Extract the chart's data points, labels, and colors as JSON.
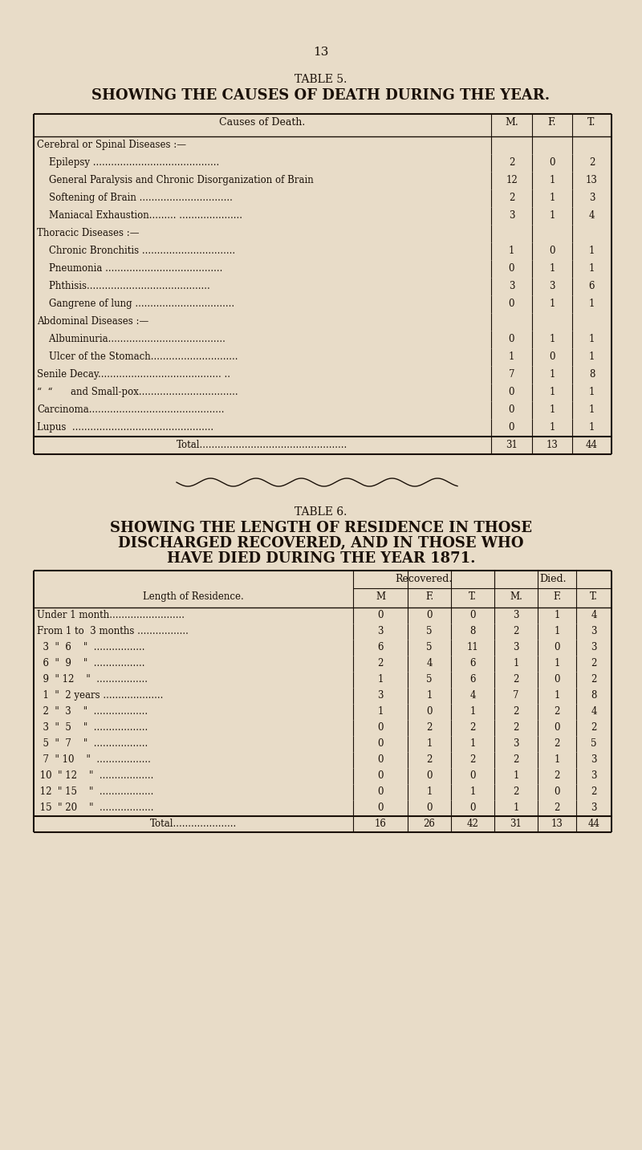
{
  "page_number": "13",
  "bg_color": "#e8dcc8",
  "text_color": "#1a1008",
  "table5_title1": "TABLE 5.",
  "table5_title2": "SHOWING THE CAUSES OF DEATH DURING THE YEAR.",
  "table5_rows": [
    [
      "Cerebral or Spinal Diseases :—",
      "",
      "",
      ""
    ],
    [
      "    Epilepsy ..........................................",
      "2",
      "0",
      "2"
    ],
    [
      "    General Paralysis and Chronic Disorganization of Brain",
      "12",
      "1",
      "13"
    ],
    [
      "    Softening of Brain ...............................",
      "2",
      "1",
      "3"
    ],
    [
      "    Maniacal Exhaustion......... .....................",
      "3",
      "1",
      "4"
    ],
    [
      "Thoracic Diseases :—",
      "",
      "",
      ""
    ],
    [
      "    Chronic Bronchitis ...............................",
      "1",
      "0",
      "1"
    ],
    [
      "    Pneumonia .......................................",
      "0",
      "1",
      "1"
    ],
    [
      "    Phthisis.........................................",
      "3",
      "3",
      "6"
    ],
    [
      "    Gangrene of lung .................................",
      "0",
      "1",
      "1"
    ],
    [
      "Abdominal Diseases :—",
      "",
      "",
      ""
    ],
    [
      "    Albuminuria.......................................",
      "0",
      "1",
      "1"
    ],
    [
      "    Ulcer of the Stomach.............................",
      "1",
      "0",
      "1"
    ],
    [
      "Senile Decay......................................... ..",
      "7",
      "1",
      "8"
    ],
    [
      "“  “      and Small-pox.................................",
      "0",
      "1",
      "1"
    ],
    [
      "Carcinoma.............................................",
      "0",
      "1",
      "1"
    ],
    [
      "Lupus  ...............................................",
      "0",
      "1",
      "1"
    ],
    [
      "Total.................................................",
      "31",
      "13",
      "44"
    ]
  ],
  "table6_title1": "TABLE 6.",
  "table6_title2": "SHOWING THE LENGTH OF RESIDENCE IN THOSE",
  "table6_title3": "DISCHARGED RECOVERED, AND IN THOSE WHO",
  "table6_title4": "HAVE DIED DURING THE YEAR 1871.",
  "table6_rows": [
    [
      "Under 1 month.........................",
      "0",
      "0",
      "0",
      "3",
      "1",
      "4"
    ],
    [
      "From 1 to  3 months .................",
      "3",
      "5",
      "8",
      "2",
      "1",
      "3"
    ],
    [
      "  3  \"  6    \"  .................",
      "6",
      "5",
      "11",
      "3",
      "0",
      "3"
    ],
    [
      "  6  \"  9    \"  .................",
      "2",
      "4",
      "6",
      "1",
      "1",
      "2"
    ],
    [
      "  9  \" 12    \"  .................",
      "1",
      "5",
      "6",
      "2",
      "0",
      "2"
    ],
    [
      "  1  \"  2 years ....................",
      "3",
      "1",
      "4",
      "7",
      "1",
      "8"
    ],
    [
      "  2  \"  3    \"  ..................",
      "1",
      "0",
      "1",
      "2",
      "2",
      "4"
    ],
    [
      "  3  \"  5    \"  ..................",
      "0",
      "2",
      "2",
      "2",
      "0",
      "2"
    ],
    [
      "  5  \"  7    \"  ..................",
      "0",
      "1",
      "1",
      "3",
      "2",
      "5"
    ],
    [
      "  7  \" 10    \"  ..................",
      "0",
      "2",
      "2",
      "2",
      "1",
      "3"
    ],
    [
      " 10  \" 12    \"  ..................",
      "0",
      "0",
      "0",
      "1",
      "2",
      "3"
    ],
    [
      " 12  \" 15    \"  ..................",
      "0",
      "1",
      "1",
      "2",
      "0",
      "2"
    ],
    [
      " 15  \" 20    \"  ..................",
      "0",
      "0",
      "0",
      "1",
      "2",
      "3"
    ],
    [
      "Total.....................",
      "16",
      "26",
      "42",
      "31",
      "13",
      "44"
    ]
  ]
}
